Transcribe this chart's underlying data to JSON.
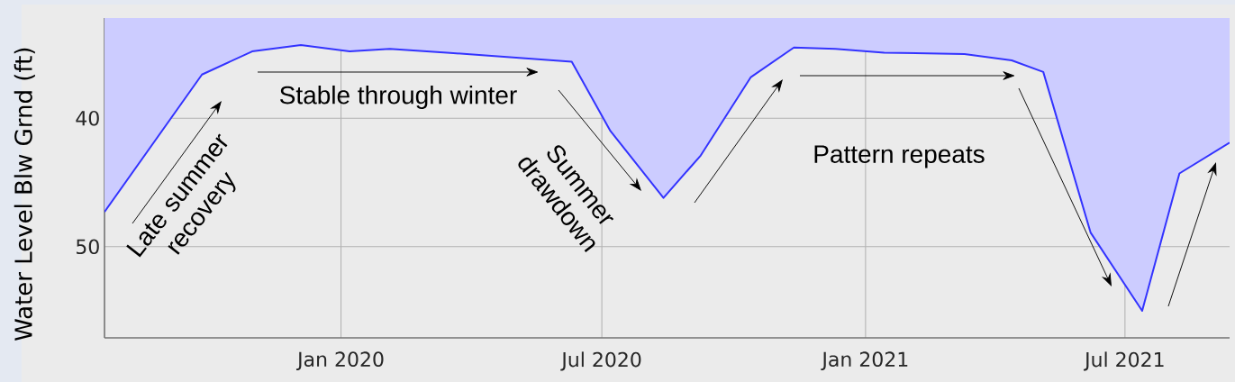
{
  "chart_data": {
    "type": "area",
    "ylabel": "Water Level Blw Grnd (ft)",
    "annotations": [
      "Late summer recovery",
      "Stable through winter",
      "Summer drawdown",
      "Pattern repeats"
    ],
    "x": [
      "2019-07-20",
      "2019-09-26",
      "2019-10-31",
      "2019-12-04",
      "2020-01-07",
      "2020-02-04",
      "2020-03-15",
      "2020-06-10",
      "2020-07-07",
      "2020-08-13",
      "2020-09-08",
      "2020-10-13",
      "2020-11-12",
      "2020-12-11",
      "2021-01-14",
      "2021-03-11",
      "2021-04-13",
      "2021-05-05",
      "2021-06-07",
      "2021-07-13",
      "2021-08-08",
      "2021-09-12"
    ],
    "values": [
      47.3,
      36.6,
      34.8,
      34.3,
      34.8,
      34.6,
      34.9,
      35.6,
      41.0,
      46.2,
      42.9,
      36.8,
      34.5,
      34.6,
      34.9,
      35.0,
      35.5,
      36.4,
      48.9,
      55.0,
      44.3,
      41.9
    ],
    "color": "#3333ff",
    "xlim": [
      "2019-07-20",
      "2021-09-12"
    ],
    "xticks": [
      {
        "value": "2020-01-01",
        "label": "Jan 2020"
      },
      {
        "value": "2020-07-01",
        "label": "Jul 2020"
      },
      {
        "value": "2021-01-01",
        "label": "Jan 2021"
      },
      {
        "value": "2021-07-01",
        "label": "Jul 2021"
      }
    ],
    "ylim": [
      57.1,
      32.2
    ],
    "yticks": [
      40,
      50
    ],
    "grid": true
  }
}
